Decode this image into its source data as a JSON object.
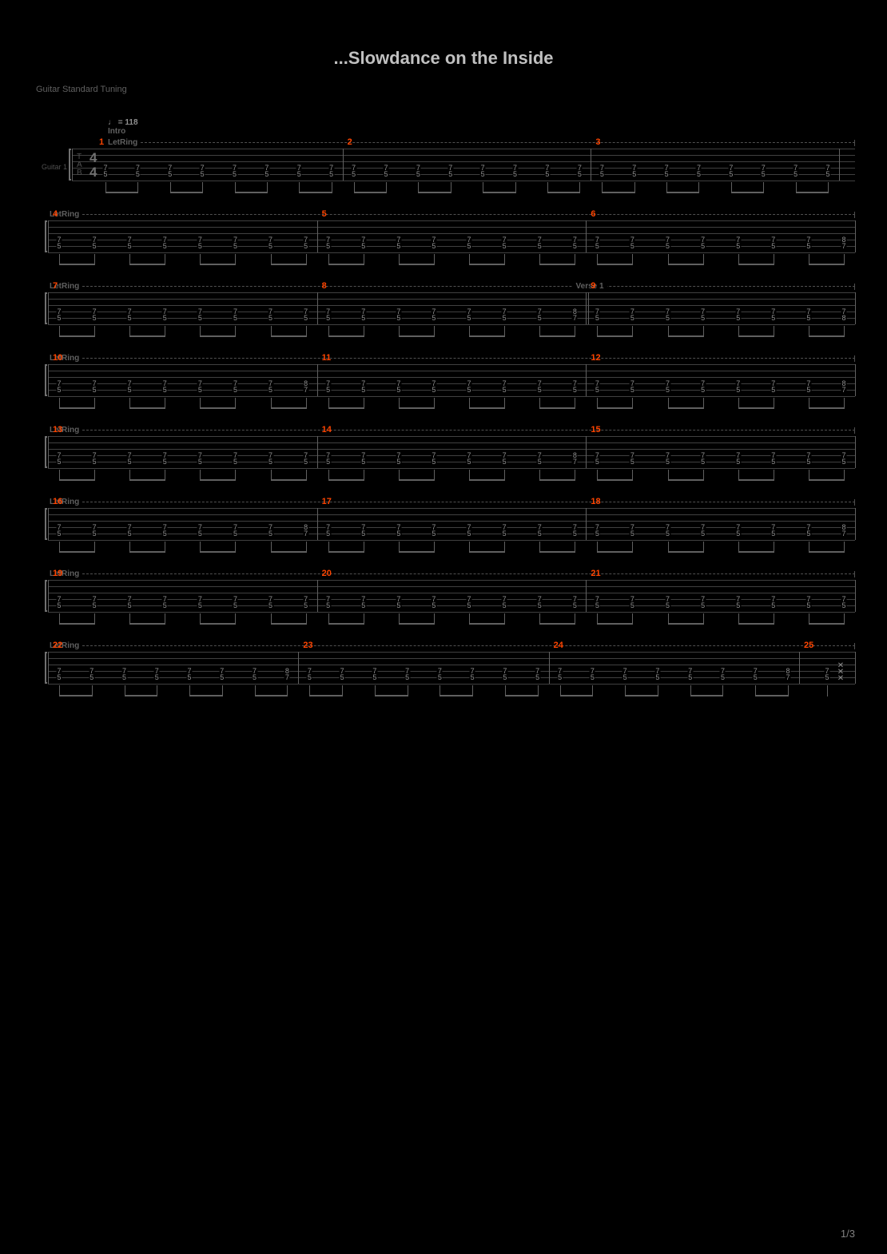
{
  "title": "...Slowdance on the Inside",
  "subtitle": "Guitar Standard Tuning",
  "tempo": "= 118",
  "intro_label": "Intro",
  "letring_label": "LetRing",
  "verse_label": "Verse 1",
  "guitar_label": "Guitar 1",
  "page_number": "1/3",
  "timesig_top": "4",
  "timesig_bot": "4",
  "tab_letters": "T\nA\nB",
  "colors": {
    "bg": "#000000",
    "title": "#c0c0c0",
    "text_dim": "#606060",
    "measure_num": "#ff4500",
    "note": "#909090",
    "line": "#404040"
  },
  "rows": [
    {
      "row_index": 0,
      "has_label": true,
      "has_timesig": true,
      "has_tab_letters": true,
      "letring_indent": 95,
      "measures": [
        {
          "num": "1",
          "notes_g": [
            "7",
            "7",
            "7",
            "7",
            "7",
            "7",
            "7",
            "7"
          ],
          "notes_a": [
            "5",
            "5",
            "5",
            "5",
            "5",
            "5",
            "5",
            "5"
          ]
        },
        {
          "num": "2",
          "notes_g": [
            "7",
            "7",
            "7",
            "7",
            "7",
            "7",
            "7",
            "7"
          ],
          "notes_a": [
            "5",
            "5",
            "5",
            "5",
            "5",
            "5",
            "5",
            "5"
          ]
        },
        {
          "num": "3",
          "notes_g": [
            "7",
            "7",
            "7",
            "7",
            "7",
            "7",
            "7",
            "7"
          ],
          "notes_a": [
            "5",
            "5",
            "5",
            "5",
            "5",
            "5",
            "5",
            "5"
          ]
        }
      ]
    },
    {
      "row_index": 1,
      "measures": [
        {
          "num": "4",
          "notes_g": [
            "7",
            "7",
            "7",
            "7",
            "7",
            "7",
            "7",
            "7"
          ],
          "notes_a": [
            "5",
            "5",
            "5",
            "5",
            "5",
            "5",
            "5",
            "5"
          ]
        },
        {
          "num": "5",
          "notes_g": [
            "7",
            "7",
            "7",
            "7",
            "7",
            "7",
            "7",
            "7"
          ],
          "notes_a": [
            "5",
            "5",
            "5",
            "5",
            "5",
            "5",
            "5",
            "5"
          ]
        },
        {
          "num": "6",
          "notes_g": [
            "7",
            "7",
            "7",
            "7",
            "7",
            "7",
            "7",
            "8"
          ],
          "notes_a": [
            "5",
            "5",
            "5",
            "5",
            "5",
            "5",
            "5",
            "7"
          ]
        }
      ]
    },
    {
      "row_index": 2,
      "verse_at": 2,
      "measures": [
        {
          "num": "7",
          "notes_g": [
            "7",
            "7",
            "7",
            "7",
            "7",
            "7",
            "7",
            "7"
          ],
          "notes_a": [
            "5",
            "5",
            "5",
            "5",
            "5",
            "5",
            "5",
            "5"
          ]
        },
        {
          "num": "8",
          "notes_g": [
            "7",
            "7",
            "7",
            "7",
            "7",
            "7",
            "7",
            "8"
          ],
          "notes_a": [
            "5",
            "5",
            "5",
            "5",
            "5",
            "5",
            "5",
            "7"
          ],
          "end_dbl": true
        },
        {
          "num": "9",
          "notes_g": [
            "7",
            "7",
            "7",
            "7",
            "7",
            "7",
            "7",
            "7"
          ],
          "notes_a": [
            "5",
            "5",
            "5",
            "5",
            "5",
            "5",
            "5",
            "8"
          ]
        }
      ]
    },
    {
      "row_index": 3,
      "measures": [
        {
          "num": "10",
          "notes_g": [
            "7",
            "7",
            "7",
            "7",
            "7",
            "7",
            "7",
            "8"
          ],
          "notes_a": [
            "5",
            "5",
            "5",
            "5",
            "5",
            "5",
            "5",
            "7"
          ]
        },
        {
          "num": "11",
          "notes_g": [
            "7",
            "7",
            "7",
            "7",
            "7",
            "7",
            "7",
            "7"
          ],
          "notes_a": [
            "5",
            "5",
            "5",
            "5",
            "5",
            "5",
            "5",
            "5"
          ]
        },
        {
          "num": "12",
          "notes_g": [
            "7",
            "7",
            "7",
            "7",
            "7",
            "7",
            "7",
            "8"
          ],
          "notes_a": [
            "5",
            "5",
            "5",
            "5",
            "5",
            "5",
            "5",
            "7"
          ]
        }
      ]
    },
    {
      "row_index": 4,
      "measures": [
        {
          "num": "13",
          "notes_g": [
            "7",
            "7",
            "7",
            "7",
            "7",
            "7",
            "7",
            "7"
          ],
          "notes_a": [
            "5",
            "5",
            "5",
            "5",
            "5",
            "5",
            "5",
            "5"
          ]
        },
        {
          "num": "14",
          "notes_g": [
            "7",
            "7",
            "7",
            "7",
            "7",
            "7",
            "7",
            "8"
          ],
          "notes_a": [
            "5",
            "5",
            "5",
            "5",
            "5",
            "5",
            "5",
            "7"
          ]
        },
        {
          "num": "15",
          "notes_g": [
            "7",
            "7",
            "7",
            "7",
            "7",
            "7",
            "7",
            "7"
          ],
          "notes_a": [
            "5",
            "5",
            "5",
            "5",
            "5",
            "5",
            "5",
            "5"
          ]
        }
      ]
    },
    {
      "row_index": 5,
      "measures": [
        {
          "num": "16",
          "notes_g": [
            "7",
            "7",
            "7",
            "7",
            "7",
            "7",
            "7",
            "8"
          ],
          "notes_a": [
            "5",
            "5",
            "5",
            "5",
            "5",
            "5",
            "5",
            "7"
          ]
        },
        {
          "num": "17",
          "notes_g": [
            "7",
            "7",
            "7",
            "7",
            "7",
            "7",
            "7",
            "7"
          ],
          "notes_a": [
            "5",
            "5",
            "5",
            "5",
            "5",
            "5",
            "5",
            "5"
          ]
        },
        {
          "num": "18",
          "notes_g": [
            "7",
            "7",
            "7",
            "7",
            "7",
            "7",
            "7",
            "8"
          ],
          "notes_a": [
            "5",
            "5",
            "5",
            "5",
            "5",
            "5",
            "5",
            "7"
          ]
        }
      ]
    },
    {
      "row_index": 6,
      "measures": [
        {
          "num": "19",
          "notes_g": [
            "7",
            "7",
            "7",
            "7",
            "7",
            "7",
            "7",
            "7"
          ],
          "notes_a": [
            "5",
            "5",
            "5",
            "5",
            "5",
            "5",
            "5",
            "5"
          ]
        },
        {
          "num": "20",
          "notes_g": [
            "7",
            "7",
            "7",
            "7",
            "7",
            "7",
            "7",
            "7"
          ],
          "notes_a": [
            "5",
            "5",
            "5",
            "5",
            "5",
            "5",
            "5",
            "5"
          ]
        },
        {
          "num": "21",
          "notes_g": [
            "7",
            "7",
            "7",
            "7",
            "7",
            "7",
            "7",
            "7"
          ],
          "notes_a": [
            "5",
            "5",
            "5",
            "5",
            "5",
            "5",
            "5",
            "5"
          ]
        }
      ]
    },
    {
      "row_index": 7,
      "measures": [
        {
          "num": "22",
          "notes_g": [
            "7",
            "7",
            "7",
            "7",
            "7",
            "7",
            "7",
            "8"
          ],
          "notes_a": [
            "5",
            "5",
            "5",
            "5",
            "5",
            "5",
            "5",
            "7"
          ]
        },
        {
          "num": "23",
          "notes_g": [
            "7",
            "7",
            "7",
            "7",
            "7",
            "7",
            "7",
            "7"
          ],
          "notes_a": [
            "5",
            "5",
            "5",
            "5",
            "5",
            "5",
            "5",
            "5"
          ]
        },
        {
          "num": "24",
          "notes_g": [
            "7",
            "7",
            "7",
            "7",
            "7",
            "7",
            "7",
            "8"
          ],
          "notes_a": [
            "5",
            "5",
            "5",
            "5",
            "5",
            "5",
            "5",
            "7"
          ]
        },
        {
          "num": "25",
          "special": true,
          "notes_g": [
            "7"
          ],
          "notes_a": [
            "5"
          ],
          "x_marks": true
        }
      ]
    }
  ]
}
